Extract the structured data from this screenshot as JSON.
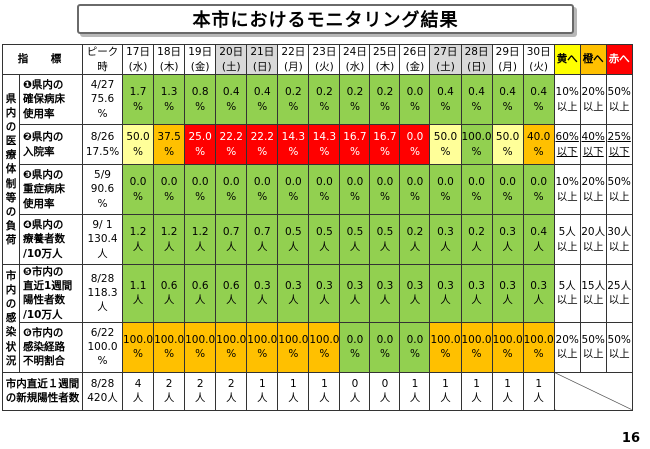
{
  "title": "本市におけるモニタリング結果",
  "page_number": "16",
  "header": {
    "indicator": "指　標",
    "peak": [
      "ピーク",
      "時"
    ],
    "days": [
      {
        "d": "17日",
        "w": "(水)",
        "weekend": false
      },
      {
        "d": "18日",
        "w": "(木)",
        "weekend": false
      },
      {
        "d": "19日",
        "w": "(金)",
        "weekend": false
      },
      {
        "d": "20日",
        "w": "(土)",
        "weekend": true
      },
      {
        "d": "21日",
        "w": "(日)",
        "weekend": true
      },
      {
        "d": "22日",
        "w": "(月)",
        "weekend": false
      },
      {
        "d": "23日",
        "w": "(火)",
        "weekend": false
      },
      {
        "d": "24日",
        "w": "(水)",
        "weekend": false
      },
      {
        "d": "25日",
        "w": "(木)",
        "weekend": false
      },
      {
        "d": "26日",
        "w": "(金)",
        "weekend": false
      },
      {
        "d": "27日",
        "w": "(土)",
        "weekend": true
      },
      {
        "d": "28日",
        "w": "(日)",
        "weekend": true
      },
      {
        "d": "29日",
        "w": "(月)",
        "weekend": false
      },
      {
        "d": "30日",
        "w": "(火)",
        "weekend": false
      }
    ],
    "thresholds": [
      "黄へ",
      "橙へ",
      "赤へ"
    ]
  },
  "categories": {
    "medical": [
      "県",
      "内",
      "の",
      "医",
      "療",
      "体",
      "制",
      "等",
      "の",
      "負",
      "荷"
    ],
    "infection": [
      "市",
      "内",
      "の",
      "感",
      "染",
      "状",
      "況"
    ]
  },
  "rows": [
    {
      "name": [
        "❶県内の",
        "確保病床",
        "使用率"
      ],
      "peak": [
        "4/27",
        "75.6",
        "%"
      ],
      "unit": "%",
      "values": [
        "1.7",
        "1.3",
        "0.8",
        "0.4",
        "0.4",
        "0.2",
        "0.2",
        "0.2",
        "0.2",
        "0.0",
        "0.4",
        "0.4",
        "0.4",
        "0.4"
      ],
      "colors": [
        "g",
        "g",
        "g",
        "g",
        "g",
        "g",
        "g",
        "g",
        "g",
        "g",
        "g",
        "g",
        "g",
        "g"
      ],
      "thresholds": [
        [
          "10%",
          "以上"
        ],
        [
          "20%",
          "以上"
        ],
        [
          "50%",
          "以上"
        ]
      ],
      "underline": false
    },
    {
      "name": [
        "❷県内の",
        "入院率"
      ],
      "peak": [
        "8/26",
        "17.5%"
      ],
      "unit": "%",
      "values": [
        "50.0",
        "37.5",
        "25.0",
        "22.2",
        "22.2",
        "14.3",
        "14.3",
        "16.7",
        "16.7",
        "0.0",
        "50.0",
        "100.0",
        "50.0",
        "40.0"
      ],
      "colors": [
        "y",
        "o",
        "r",
        "r",
        "r",
        "r",
        "r",
        "r",
        "r",
        "r",
        "y",
        "g",
        "y",
        "o"
      ],
      "thresholds": [
        [
          "60%",
          "以下"
        ],
        [
          "40%",
          "以下"
        ],
        [
          "25%",
          "以下"
        ]
      ],
      "underline": true
    },
    {
      "name": [
        "❸県内の",
        "重症病床",
        "使用率"
      ],
      "peak": [
        "5/9",
        "90.6",
        "%"
      ],
      "unit": "%",
      "values": [
        "0.0",
        "0.0",
        "0.0",
        "0.0",
        "0.0",
        "0.0",
        "0.0",
        "0.0",
        "0.0",
        "0.0",
        "0.0",
        "0.0",
        "0.0",
        "0.0"
      ],
      "colors": [
        "g",
        "g",
        "g",
        "g",
        "g",
        "g",
        "g",
        "g",
        "g",
        "g",
        "g",
        "g",
        "g",
        "g"
      ],
      "thresholds": [
        [
          "10%",
          "以上"
        ],
        [
          "20%",
          "以上"
        ],
        [
          "50%",
          "以上"
        ]
      ],
      "underline": false
    },
    {
      "name": [
        "❹県内の",
        "療養者数",
        "/10万人"
      ],
      "peak": [
        "9/ 1",
        "130.4",
        "人"
      ],
      "unit": "人",
      "values": [
        "1.2",
        "1.2",
        "1.2",
        "0.7",
        "0.7",
        "0.5",
        "0.5",
        "0.5",
        "0.5",
        "0.2",
        "0.3",
        "0.2",
        "0.3",
        "0.4"
      ],
      "colors": [
        "g",
        "g",
        "g",
        "g",
        "g",
        "g",
        "g",
        "g",
        "g",
        "g",
        "g",
        "g",
        "g",
        "g"
      ],
      "thresholds": [
        [
          "5人",
          "以上"
        ],
        [
          "20人",
          "以上"
        ],
        [
          "30人",
          "以上"
        ]
      ],
      "underline": false
    },
    {
      "name": [
        "❺市内の",
        "直近1週間",
        "陽性者数",
        "/10万人"
      ],
      "peak": [
        "8/28",
        "118.3",
        "人"
      ],
      "unit": "人",
      "values": [
        "1.1",
        "0.6",
        "0.6",
        "0.6",
        "0.3",
        "0.3",
        "0.3",
        "0.3",
        "0.3",
        "0.3",
        "0.3",
        "0.3",
        "0.3",
        "0.3"
      ],
      "colors": [
        "g",
        "g",
        "g",
        "g",
        "g",
        "g",
        "g",
        "g",
        "g",
        "g",
        "g",
        "g",
        "g",
        "g"
      ],
      "thresholds": [
        [
          "5人",
          "以上"
        ],
        [
          "15人",
          "以上"
        ],
        [
          "25人",
          "以上"
        ]
      ],
      "underline": false
    },
    {
      "name": [
        "❻市内の",
        "感染経路",
        "不明割合"
      ],
      "peak": [
        "6/22",
        "100.0",
        "%"
      ],
      "unit": "%",
      "values": [
        "100.0",
        "100.0",
        "100.0",
        "100.0",
        "100.0",
        "100.0",
        "100.0",
        "0.0",
        "0.0",
        "0.0",
        "100.0",
        "100.0",
        "100.0",
        "100.0"
      ],
      "colors": [
        "o",
        "o",
        "o",
        "o",
        "o",
        "o",
        "o",
        "g",
        "g",
        "g",
        "o",
        "o",
        "o",
        "o"
      ],
      "thresholds": [
        [
          "20%",
          "以上"
        ],
        [
          "50%",
          "以上"
        ],
        [
          "50%",
          "以上"
        ]
      ],
      "underline": false
    }
  ],
  "bottom": {
    "label": [
      "市内直近１週間",
      "の新規陽性者数"
    ],
    "peak": [
      "8/28",
      "420人"
    ],
    "values": [
      "4",
      "2",
      "2",
      "2",
      "1",
      "1",
      "1",
      "0",
      "0",
      "1",
      "1",
      "1",
      "1",
      "1"
    ],
    "unit": "人"
  },
  "colors": {
    "green": "#92d050",
    "yellow": "#ffff99",
    "orange": "#ffc000",
    "red": "#ff0000",
    "threshold_yellow": "#ffff00",
    "weekend_header": "#d9d9d9"
  }
}
